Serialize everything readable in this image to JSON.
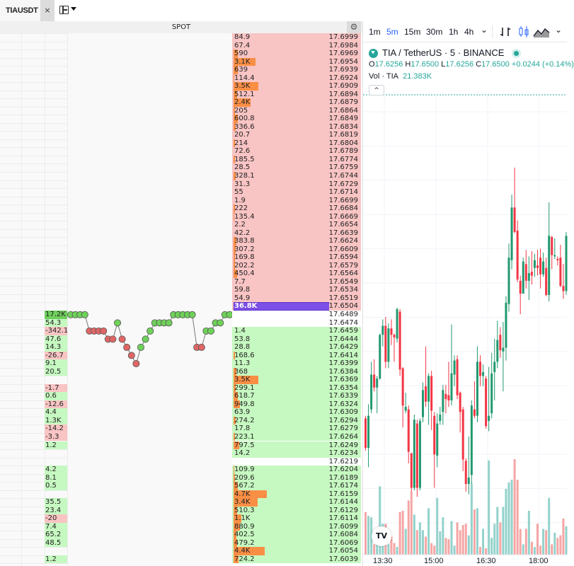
{
  "tab": {
    "title": "TIAUSDT",
    "close_icon": "×"
  },
  "spot_header": {
    "label": "SPOT",
    "settings_icon": "⚙"
  },
  "colors": {
    "ask": "#f9c4c4",
    "bid": "#c6f9c1",
    "size_bar": "#f98f45",
    "highlight": "#7c4fe6",
    "up": "#26a69a",
    "down": "#ef5350",
    "dot_up": "#6fd15a",
    "dot_down": "#e06666"
  },
  "orderbook": {
    "asks": [
      {
        "qty": "84.9",
        "price": "17.6999"
      },
      {
        "qty": "67.4",
        "price": "17.6984"
      },
      {
        "qty": "590",
        "price": "17.6969"
      },
      {
        "qty": "3.1K",
        "price": "17.6954"
      },
      {
        "qty": "639",
        "price": "17.6939"
      },
      {
        "qty": "114.4",
        "price": "17.6924"
      },
      {
        "qty": "3.5K",
        "price": "17.6909"
      },
      {
        "qty": "512.1",
        "price": "17.6894"
      },
      {
        "qty": "2.4K",
        "price": "17.6879"
      },
      {
        "qty": "205",
        "price": "17.6864"
      },
      {
        "qty": "600.8",
        "price": "17.6849"
      },
      {
        "qty": "336.6",
        "price": "17.6834"
      },
      {
        "qty": "20.7",
        "price": "17.6819"
      },
      {
        "qty": "214",
        "price": "17.6804"
      },
      {
        "qty": "72.6",
        "price": "17.6789"
      },
      {
        "qty": "185.5",
        "price": "17.6774"
      },
      {
        "qty": "28.5",
        "price": "17.6759"
      },
      {
        "qty": "328.1",
        "price": "17.6744"
      },
      {
        "qty": "31.3",
        "price": "17.6729"
      },
      {
        "qty": "55",
        "price": "17.6714"
      },
      {
        "qty": "1.9",
        "price": "17.6699"
      },
      {
        "qty": "222",
        "price": "17.6684"
      },
      {
        "qty": "135.4",
        "price": "17.6669"
      },
      {
        "qty": "2.2",
        "price": "17.6654"
      },
      {
        "qty": "42.2",
        "price": "17.6639"
      },
      {
        "qty": "383.8",
        "price": "17.6624"
      },
      {
        "qty": "307.2",
        "price": "17.6609"
      },
      {
        "qty": "169.8",
        "price": "17.6594"
      },
      {
        "qty": "202.2",
        "price": "17.6579"
      },
      {
        "qty": "450.4",
        "price": "17.6564"
      },
      {
        "qty": "7.7",
        "price": "17.6549"
      },
      {
        "qty": "59.8",
        "price": "17.6534"
      },
      {
        "qty": "54.9",
        "price": "17.6519"
      },
      {
        "qty": "36.8K",
        "price": "17.6504",
        "highlight": true
      }
    ],
    "bids": [
      {
        "qty": "",
        "price": "17.6489",
        "delta": "17.2K"
      },
      {
        "qty": "",
        "price": "17.6474",
        "delta": "54.3"
      },
      {
        "qty": "1.4",
        "price": "17.6459",
        "delta": "-342.1"
      },
      {
        "qty": "53.8",
        "price": "17.6444",
        "delta": "47.6"
      },
      {
        "qty": "28.8",
        "price": "17.6429",
        "delta": "14.3"
      },
      {
        "qty": "168.6",
        "price": "17.6414",
        "delta": "-26.7"
      },
      {
        "qty": "11.3",
        "price": "17.6399",
        "delta": "9.1"
      },
      {
        "qty": "368",
        "price": "17.6384",
        "delta": "20.5"
      },
      {
        "qty": "3.5K",
        "price": "17.6369",
        "delta": ""
      },
      {
        "qty": "299.1",
        "price": "17.6354",
        "delta": "-1.7"
      },
      {
        "qty": "618.7",
        "price": "17.6339",
        "delta": "0.6"
      },
      {
        "qty": "949.8",
        "price": "17.6324",
        "delta": "-12.6"
      },
      {
        "qty": "63.9",
        "price": "17.6309",
        "delta": "4.4"
      },
      {
        "qty": "274.2",
        "price": "17.6294",
        "delta": "1.3K"
      },
      {
        "qty": "17.8",
        "price": "17.6279",
        "delta": "-14.2"
      },
      {
        "qty": "223.1",
        "price": "17.6264",
        "delta": "-3.3"
      },
      {
        "qty": "797.5",
        "price": "17.6249",
        "delta": "1.2"
      },
      {
        "qty": "14.2",
        "price": "17.6234",
        "delta": ""
      },
      {
        "qty": "",
        "price": "17.6219",
        "delta": ""
      },
      {
        "qty": "109.9",
        "price": "17.6204",
        "delta": "4.2"
      },
      {
        "qty": "209.6",
        "price": "17.6189",
        "delta": "8.1"
      },
      {
        "qty": "567.2",
        "price": "17.6174",
        "delta": "0.5"
      },
      {
        "qty": "4.7K",
        "price": "17.6159",
        "delta": ""
      },
      {
        "qty": "3.4K",
        "price": "17.6144",
        "delta": "35.5"
      },
      {
        "qty": "510.3",
        "price": "17.6129",
        "delta": "23.4"
      },
      {
        "qty": "1.1K",
        "price": "17.6114",
        "delta": "-20"
      },
      {
        "qty": "880.9",
        "price": "17.6099",
        "delta": "7.4"
      },
      {
        "qty": "402.5",
        "price": "17.6084",
        "delta": "65.2"
      },
      {
        "qty": "479.2",
        "price": "17.6069",
        "delta": "48.5"
      },
      {
        "qty": "4.4K",
        "price": "17.6054",
        "delta": ""
      },
      {
        "qty": "724.2",
        "price": "17.6039",
        "delta": "1.2"
      }
    ]
  },
  "trade_dots": [
    {
      "level": 0,
      "dir": "up"
    },
    {
      "level": 0,
      "dir": "up"
    },
    {
      "level": 0,
      "dir": "up"
    },
    {
      "level": 0,
      "dir": "up"
    },
    {
      "level": 2,
      "dir": "down"
    },
    {
      "level": 2,
      "dir": "down"
    },
    {
      "level": 2,
      "dir": "down"
    },
    {
      "level": 2,
      "dir": "down"
    },
    {
      "level": 3,
      "dir": "down"
    },
    {
      "level": 3,
      "dir": "down"
    },
    {
      "level": 1,
      "dir": "up"
    },
    {
      "level": 3,
      "dir": "down"
    },
    {
      "level": 4,
      "dir": "down"
    },
    {
      "level": 5,
      "dir": "down"
    },
    {
      "level": 6,
      "dir": "down"
    },
    {
      "level": 4,
      "dir": "up"
    },
    {
      "level": 3,
      "dir": "up"
    },
    {
      "level": 2,
      "dir": "up"
    },
    {
      "level": 1,
      "dir": "up"
    },
    {
      "level": 1,
      "dir": "up"
    },
    {
      "level": 1,
      "dir": "up"
    },
    {
      "level": 1,
      "dir": "up"
    },
    {
      "level": 0,
      "dir": "up"
    },
    {
      "level": 0,
      "dir": "up"
    },
    {
      "level": 0,
      "dir": "up"
    },
    {
      "level": 0,
      "dir": "up"
    },
    {
      "level": 0,
      "dir": "up"
    },
    {
      "level": 4,
      "dir": "down"
    },
    {
      "level": 4,
      "dir": "down"
    },
    {
      "level": 2,
      "dir": "up"
    },
    {
      "level": 2,
      "dir": "up"
    },
    {
      "level": 1,
      "dir": "up"
    },
    {
      "level": 1,
      "dir": "up"
    },
    {
      "level": 0,
      "dir": "up"
    },
    {
      "level": 0,
      "dir": "up"
    }
  ],
  "chart": {
    "timeframes": [
      "1m",
      "5m",
      "15m",
      "30m",
      "1h",
      "4h"
    ],
    "active_timeframe": "5m",
    "more_icon": "⌄",
    "symbol_line": "TIA / TetherUS · 5 · BINANCE",
    "ohlc": {
      "o_label": "O",
      "o": "17.6256",
      "h_label": "H",
      "h": "17.6500",
      "l_label": "L",
      "l": "17.6256",
      "c_label": "C",
      "c": "17.6500",
      "change": "+0.0244 (+0.14%)"
    },
    "volume": {
      "label": "Vol · TIA",
      "value": "21.383K"
    },
    "collapse_icon": "^",
    "logo": "TV"
  },
  "chart_data": {
    "type": "candlestick",
    "x_tick_labels": [
      "13:30",
      "15:00",
      "16:30",
      "18:00"
    ],
    "start_time": "13:00",
    "interval_minutes": 5,
    "ylim": [
      17.495,
      17.851
    ],
    "grid": true,
    "candles": [
      [
        17.601,
        17.603,
        17.576,
        17.578
      ],
      [
        17.578,
        17.612,
        17.563,
        17.603
      ],
      [
        17.608,
        17.645,
        17.605,
        17.635
      ],
      [
        17.635,
        17.647,
        17.622,
        17.625
      ],
      [
        17.625,
        17.634,
        17.605,
        17.632
      ],
      [
        17.632,
        17.667,
        17.631,
        17.666
      ],
      [
        17.666,
        17.678,
        17.657,
        17.673
      ],
      [
        17.673,
        17.68,
        17.64,
        17.645
      ],
      [
        17.645,
        17.675,
        17.64,
        17.671
      ],
      [
        17.671,
        17.678,
        17.658,
        17.666
      ],
      [
        17.666,
        17.667,
        17.645,
        17.664
      ],
      [
        17.663,
        17.687,
        17.66,
        17.686
      ],
      [
        17.684,
        17.686,
        17.634,
        17.639
      ],
      [
        17.64,
        17.641,
        17.594,
        17.611
      ],
      [
        17.607,
        17.621,
        17.605,
        17.61
      ],
      [
        17.608,
        17.611,
        17.566,
        17.575
      ],
      [
        17.574,
        17.574,
        17.544,
        17.547
      ],
      [
        17.547,
        17.604,
        17.545,
        17.6
      ],
      [
        17.597,
        17.6,
        17.54,
        17.547
      ],
      [
        17.547,
        17.601,
        17.545,
        17.599
      ],
      [
        17.602,
        17.629,
        17.598,
        17.623
      ],
      [
        17.626,
        17.657,
        17.61,
        17.614
      ],
      [
        17.614,
        17.636,
        17.596,
        17.634
      ],
      [
        17.634,
        17.638,
        17.592,
        17.607
      ],
      [
        17.603,
        17.606,
        17.547,
        17.573
      ],
      [
        17.572,
        17.605,
        17.563,
        17.597
      ],
      [
        17.599,
        17.61,
        17.596,
        17.604
      ],
      [
        17.606,
        17.627,
        17.596,
        17.623
      ],
      [
        17.62,
        17.627,
        17.605,
        17.616
      ],
      [
        17.619,
        17.645,
        17.61,
        17.615
      ],
      [
        17.615,
        17.674,
        17.611,
        17.636
      ],
      [
        17.635,
        17.65,
        17.626,
        17.646
      ],
      [
        17.647,
        17.65,
        17.616,
        17.619
      ],
      [
        17.621,
        17.622,
        17.59,
        17.606
      ],
      [
        17.608,
        17.61,
        17.56,
        17.569
      ],
      [
        17.568,
        17.57,
        17.544,
        17.55
      ],
      [
        17.55,
        17.587,
        17.542,
        17.555
      ],
      [
        17.557,
        17.615,
        17.55,
        17.611
      ],
      [
        17.608,
        17.63,
        17.601,
        17.603
      ],
      [
        17.603,
        17.657,
        17.598,
        17.645
      ],
      [
        17.645,
        17.65,
        17.626,
        17.634
      ],
      [
        17.634,
        17.643,
        17.626,
        17.637
      ],
      [
        17.632,
        17.634,
        17.593,
        17.595
      ],
      [
        17.599,
        17.641,
        17.591,
        17.603
      ],
      [
        17.605,
        17.652,
        17.601,
        17.636
      ],
      [
        17.637,
        17.663,
        17.615,
        17.645
      ],
      [
        17.645,
        17.677,
        17.64,
        17.662
      ],
      [
        17.666,
        17.672,
        17.648,
        17.654
      ],
      [
        17.653,
        17.676,
        17.622,
        17.656
      ],
      [
        17.656,
        17.696,
        17.646,
        17.691
      ],
      [
        17.69,
        17.737,
        17.684,
        17.726
      ],
      [
        17.724,
        17.775,
        17.717,
        17.765
      ],
      [
        17.765,
        17.796,
        17.745,
        17.746
      ],
      [
        17.747,
        17.755,
        17.707,
        17.709
      ],
      [
        17.708,
        17.712,
        17.682,
        17.698
      ],
      [
        17.698,
        17.726,
        17.698,
        17.723
      ],
      [
        17.721,
        17.732,
        17.702,
        17.708
      ],
      [
        17.708,
        17.727,
        17.693,
        17.714
      ],
      [
        17.715,
        17.731,
        17.705,
        17.712
      ],
      [
        17.718,
        17.729,
        17.711,
        17.724
      ],
      [
        17.72,
        17.732,
        17.712,
        17.718
      ],
      [
        17.726,
        17.733,
        17.702,
        17.713
      ],
      [
        17.713,
        17.73,
        17.711,
        17.723
      ],
      [
        17.718,
        17.726,
        17.696,
        17.697
      ],
      [
        17.697,
        17.769,
        17.692,
        17.743
      ],
      [
        17.742,
        17.743,
        17.717,
        17.728
      ],
      [
        17.727,
        17.741,
        17.725,
        17.728
      ],
      [
        17.725,
        17.727,
        17.72,
        17.724
      ],
      [
        17.726,
        17.736,
        17.703,
        17.704
      ],
      [
        17.704,
        17.721,
        17.694,
        17.7
      ],
      [
        17.7,
        17.746,
        17.697,
        17.743
      ]
    ],
    "volumes_k": [
      16.5,
      15,
      14.5,
      4,
      6.5,
      26.5,
      12,
      12,
      4,
      7,
      4.5,
      3,
      16.5,
      17,
      10,
      21,
      24.5,
      15.5,
      9.5,
      12.5,
      9.5,
      7,
      18,
      4.5,
      3.5,
      22,
      9,
      14.5,
      6.5,
      6,
      13,
      3.5,
      12.5,
      9.5,
      11.5,
      12,
      7.5,
      27.5,
      17.5,
      18,
      3,
      10,
      2.5,
      36.5,
      6.5,
      12,
      18.5,
      12.5,
      18.5,
      25.5,
      28,
      29,
      37,
      29,
      10,
      4,
      10,
      17,
      5,
      3,
      12,
      3.5,
      10,
      9.5,
      22,
      4,
      8.5,
      6.5,
      7.5,
      14,
      11
    ]
  }
}
